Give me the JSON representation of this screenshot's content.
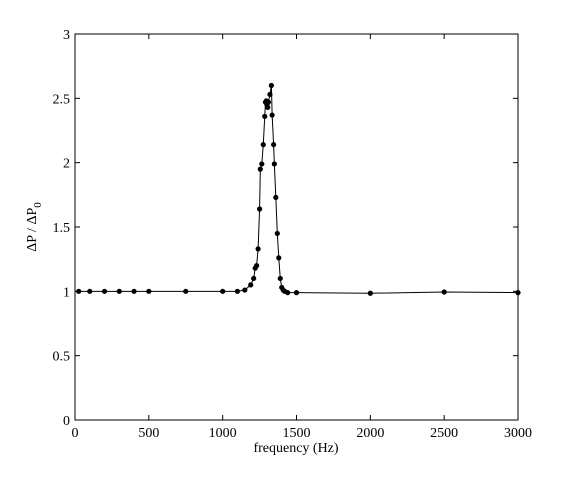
{
  "chart_data": {
    "type": "line",
    "xlabel": "frequency (Hz)",
    "ylabel": {
      "text": "ΔP / ΔP",
      "subscript": "0"
    },
    "x": [
      25,
      100,
      200,
      300,
      400,
      500,
      750,
      1000,
      1100,
      1150,
      1190,
      1210,
      1220,
      1230,
      1240,
      1250,
      1255,
      1265,
      1275,
      1285,
      1290,
      1295,
      1300,
      1305,
      1310,
      1320,
      1330,
      1335,
      1345,
      1350,
      1360,
      1370,
      1380,
      1390,
      1400,
      1410,
      1420,
      1440,
      1500,
      2000,
      2500,
      3000
    ],
    "series": [
      {
        "color": "#000000",
        "values": [
          1,
          1,
          1,
          1,
          1,
          1,
          1,
          1,
          1,
          1.01,
          1.05,
          1.1,
          1.18,
          1.2,
          1.33,
          1.64,
          1.95,
          1.99,
          2.14,
          2.36,
          2.47,
          2.48,
          2.45,
          2.43,
          2.47,
          2.53,
          2.6,
          2.37,
          2.14,
          1.99,
          1.73,
          1.45,
          1.26,
          1.1,
          1.03,
          1.01,
          1.0,
          0.99,
          0.99,
          0.985,
          0.995,
          0.99
        ]
      }
    ],
    "xlim": [
      0,
      3000
    ],
    "xticks": [
      0,
      500,
      1000,
      1500,
      2000,
      2500,
      3000
    ],
    "ylim": [
      0,
      3
    ],
    "yticks": [
      0,
      0.5,
      1,
      1.5,
      2,
      2.5,
      3
    ],
    "grid": false
  }
}
